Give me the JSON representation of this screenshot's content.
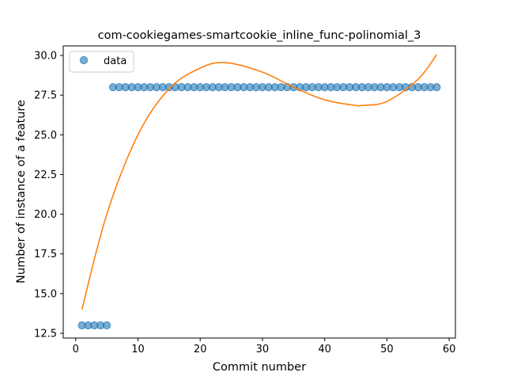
{
  "chart_data": {
    "type": "scatter",
    "title": "com-cookiegames-smartcookie_inline_func-polinomial_3",
    "xlabel": "Commit number",
    "ylabel": "Number of instance of a feature",
    "xlim": [
      -2,
      61
    ],
    "ylim": [
      12.2,
      30.6
    ],
    "xticks": [
      0,
      10,
      20,
      30,
      40,
      50,
      60
    ],
    "yticks": [
      12.5,
      15.0,
      17.5,
      20.0,
      22.5,
      25.0,
      27.5,
      30.0
    ],
    "xtick_labels": [
      "0",
      "10",
      "20",
      "30",
      "40",
      "50",
      "60"
    ],
    "ytick_labels": [
      "12.5",
      "15.0",
      "17.5",
      "20.0",
      "22.5",
      "25.0",
      "27.5",
      "30.0"
    ],
    "grid": false,
    "legend_position": "top-left",
    "series": [
      {
        "name": "data",
        "kind": "scatter",
        "color": "#1f77b4",
        "x": [
          1,
          2,
          3,
          4,
          5,
          6,
          7,
          8,
          9,
          10,
          11,
          12,
          13,
          14,
          15,
          16,
          17,
          18,
          19,
          20,
          21,
          22,
          23,
          24,
          25,
          26,
          27,
          28,
          29,
          30,
          31,
          32,
          33,
          34,
          35,
          36,
          37,
          38,
          39,
          40,
          41,
          42,
          43,
          44,
          45,
          46,
          47,
          48,
          49,
          50,
          51,
          52,
          53,
          54,
          55,
          56,
          57,
          58
        ],
        "y": [
          13,
          13,
          13,
          13,
          13,
          28,
          28,
          28,
          28,
          28,
          28,
          28,
          28,
          28,
          28,
          28,
          28,
          28,
          28,
          28,
          28,
          28,
          28,
          28,
          28,
          28,
          28,
          28,
          28,
          28,
          28,
          28,
          28,
          28,
          28,
          28,
          28,
          28,
          28,
          28,
          28,
          28,
          28,
          28,
          28,
          28,
          28,
          28,
          28,
          28,
          28,
          28,
          28,
          28,
          28,
          28,
          28,
          28
        ]
      },
      {
        "kind": "line",
        "color": "#ff7f0e",
        "x": [
          1,
          5,
          10,
          15,
          20,
          24,
          30,
          35,
          40,
          45,
          46,
          50,
          55,
          58
        ],
        "y": [
          14.0,
          20.0,
          25.0,
          27.9,
          29.2,
          29.55,
          28.95,
          28.0,
          27.2,
          26.85,
          26.85,
          27.1,
          28.5,
          30.05
        ]
      }
    ]
  }
}
